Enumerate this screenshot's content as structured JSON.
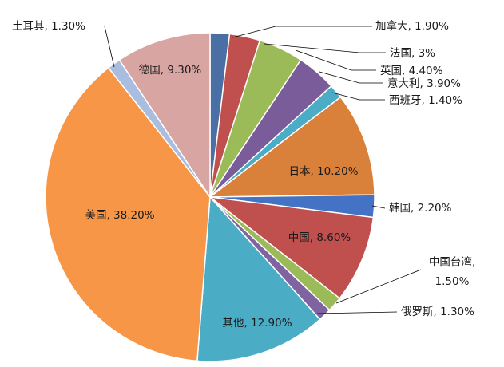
{
  "chart_data": {
    "type": "pie",
    "start_angle_deg": 0,
    "direction": "clockwise",
    "slices": [
      {
        "name": "加拿大",
        "value": 1.9,
        "label": "加拿大, 1.90%",
        "color": "#4a6fa5",
        "label_mode": "outside"
      },
      {
        "name": "法国",
        "value": 3.0,
        "label": "法国, 3%",
        "color": "#c0504d",
        "label_mode": "outside"
      },
      {
        "name": "英国",
        "value": 4.4,
        "label": "英国, 4.40%",
        "color": "#9bbb59",
        "label_mode": "outside"
      },
      {
        "name": "意大利",
        "value": 3.9,
        "label": "意大利, 3.90%",
        "color": "#7a5c9a",
        "label_mode": "outside"
      },
      {
        "name": "西班牙",
        "value": 1.4,
        "label": "西班牙, 1.40%",
        "color": "#4bacc6",
        "label_mode": "outside"
      },
      {
        "name": "日本",
        "value": 10.2,
        "label": "日本, 10.20%",
        "color": "#d9813a",
        "label_mode": "inside"
      },
      {
        "name": "韩国",
        "value": 2.2,
        "label": "韩国, 2.20%",
        "color": "#4472c4",
        "label_mode": "outside"
      },
      {
        "name": "中国",
        "value": 8.6,
        "label": "中国, 8.60%",
        "color": "#c0504d",
        "label_mode": "inside"
      },
      {
        "name": "中国台湾",
        "value": 1.5,
        "label_lines": [
          "中国台湾,",
          "1.50%"
        ],
        "color": "#9bbb59",
        "label_mode": "outside"
      },
      {
        "name": "俄罗斯",
        "value": 1.3,
        "label": "俄罗斯, 1.30%",
        "color": "#8064a2",
        "label_mode": "outside"
      },
      {
        "name": "其他",
        "value": 12.9,
        "label": "其他, 12.90%",
        "color": "#4bacc6",
        "label_mode": "inside"
      },
      {
        "name": "美国",
        "value": 38.2,
        "label": "美国, 38.20%",
        "color": "#f79646",
        "label_mode": "inside"
      },
      {
        "name": "土耳其",
        "value": 1.3,
        "label": "土耳其, 1.30%",
        "color": "#a8bde0",
        "label_mode": "outside"
      },
      {
        "name": "德国",
        "value": 9.3,
        "label": "德国, 9.30%",
        "color": "#d9a5a3",
        "label_mode": "inside"
      }
    ]
  }
}
